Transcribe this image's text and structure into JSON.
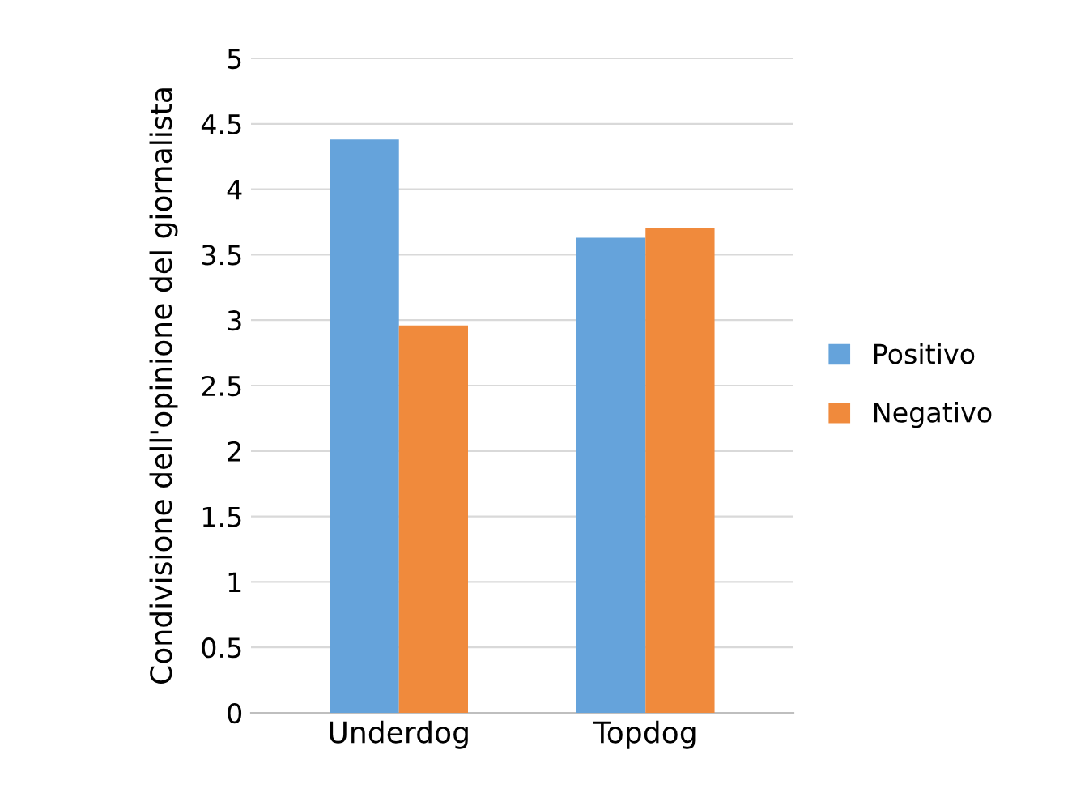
{
  "chart_data": {
    "type": "bar",
    "ylabel": "Condivisione dell'opinione del giornalista",
    "categories": [
      "Underdog",
      "Topdog"
    ],
    "series": [
      {
        "name": "Positivo",
        "color": "#65a3db",
        "values": [
          4.38,
          3.63
        ]
      },
      {
        "name": "Negativo",
        "color": "#f08a3c",
        "values": [
          2.96,
          3.7
        ]
      }
    ],
    "ylim": [
      0,
      5
    ],
    "yticks": [
      0,
      0.5,
      1,
      1.5,
      2,
      2.5,
      3,
      3.5,
      4,
      4.5,
      5
    ],
    "grid": "y",
    "legend": "right"
  }
}
